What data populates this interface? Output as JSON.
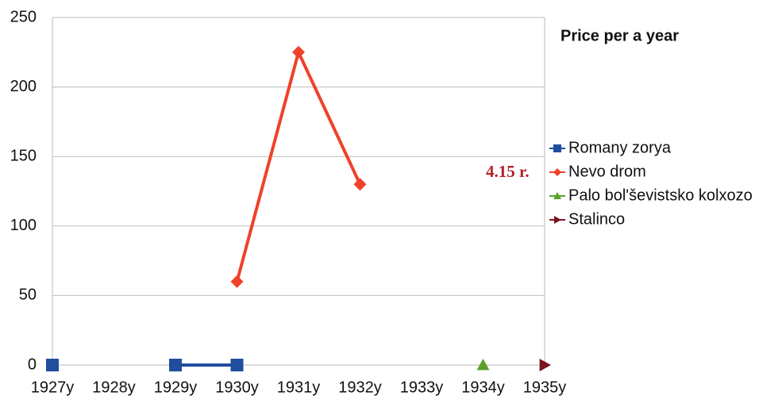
{
  "chart_data": {
    "type": "line",
    "legend_title": "Price per a year",
    "annotation": "4.15 r.",
    "categories": [
      "1927y",
      "1928y",
      "1929y",
      "1930y",
      "1931y",
      "1932y",
      "1933y",
      "1934y",
      "1935y"
    ],
    "series": [
      {
        "name": "Romany zorya",
        "color": "#1f4e9c",
        "marker": "square",
        "values": [
          0,
          null,
          0,
          0,
          null,
          null,
          null,
          null,
          null
        ]
      },
      {
        "name": "Nevo drom",
        "color": "#f0412a",
        "marker": "diamond",
        "values": [
          null,
          null,
          null,
          60,
          225,
          130,
          null,
          null,
          null
        ]
      },
      {
        "name": "Palo bol'ševistsko kolxozo",
        "color": "#5aa02c",
        "marker": "triangle",
        "values": [
          null,
          null,
          null,
          null,
          null,
          null,
          null,
          0,
          null
        ]
      },
      {
        "name": "Stalinco",
        "color": "#7b1420",
        "marker": "triangle-right",
        "values": [
          null,
          null,
          null,
          null,
          null,
          null,
          null,
          null,
          0
        ]
      }
    ],
    "ylim": [
      0,
      250
    ],
    "yticks": [
      0,
      50,
      100,
      150,
      200,
      250
    ],
    "grid": true,
    "legend": "right"
  }
}
